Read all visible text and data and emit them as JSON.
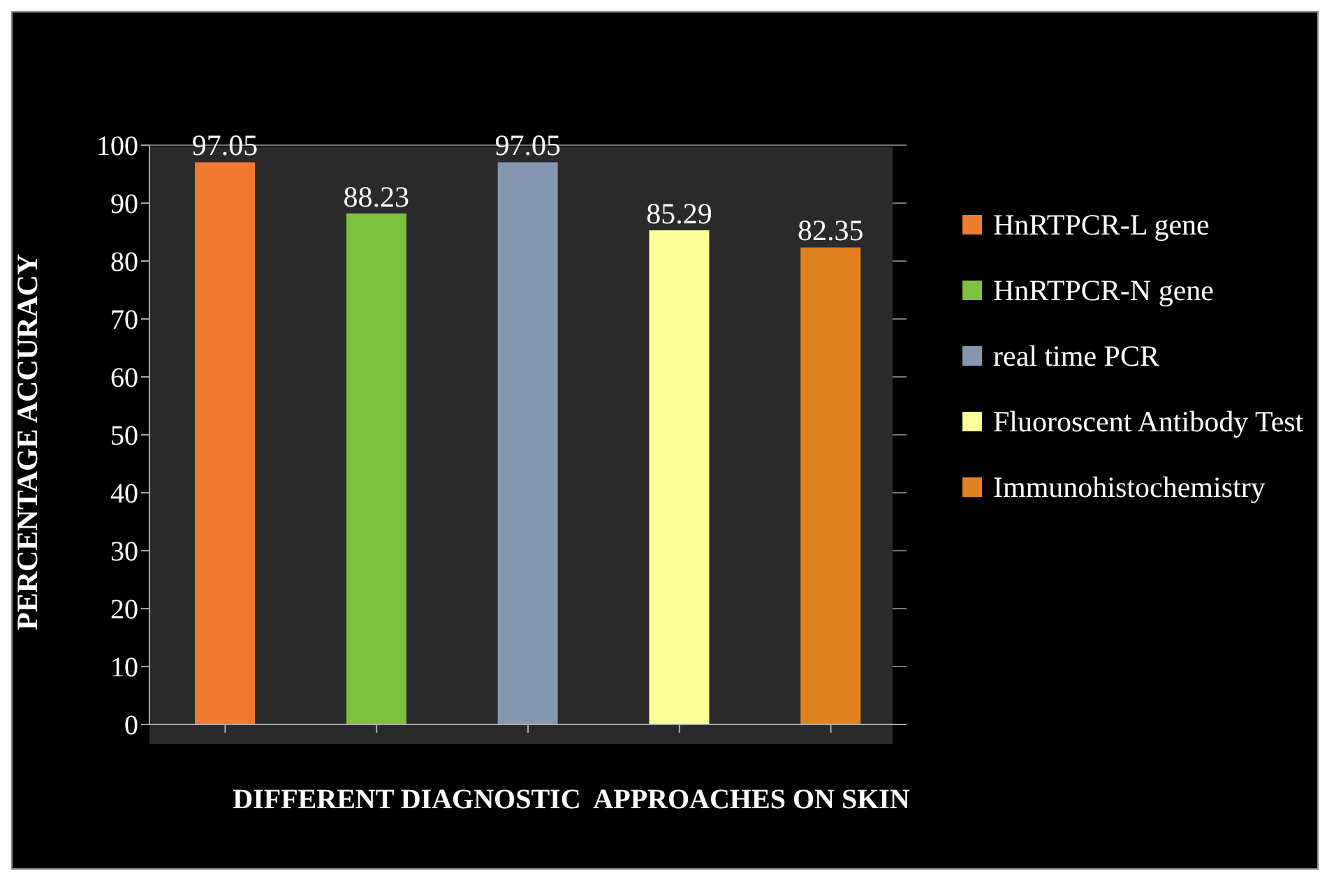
{
  "chart_data": {
    "type": "bar",
    "xlabel": "DIFFERENT DIAGNOSTIC  APPROACHES ON SKIN",
    "ylabel": "PERCENTAGE ACCURACY",
    "categories": [
      null,
      null,
      null,
      null,
      null
    ],
    "series": [
      {
        "name": "HnRTPCR-L gene",
        "color": "#f07a2e",
        "values": [
          97.05,
          null,
          null,
          null,
          null
        ]
      },
      {
        "name": "HnRTPCR-N gene",
        "color": "#7ec13f",
        "values": [
          null,
          88.23,
          null,
          null,
          null
        ]
      },
      {
        "name": "real time PCR",
        "color": "#8497b0",
        "values": [
          null,
          null,
          97.05,
          null,
          null
        ]
      },
      {
        "name": "Fluoroscent Antibody Test",
        "color": "#ffff99",
        "values": [
          null,
          null,
          null,
          85.29,
          null
        ]
      },
      {
        "name": "Immunohistochemistry",
        "color": "#e0801e",
        "values": [
          null,
          null,
          null,
          null,
          82.35
        ]
      }
    ],
    "ylim": [
      0,
      100
    ],
    "yticks": [
      0,
      10,
      20,
      30,
      40,
      50,
      60,
      70,
      80,
      90,
      100
    ],
    "grid": "y",
    "legend": "right",
    "data_labels": true
  }
}
